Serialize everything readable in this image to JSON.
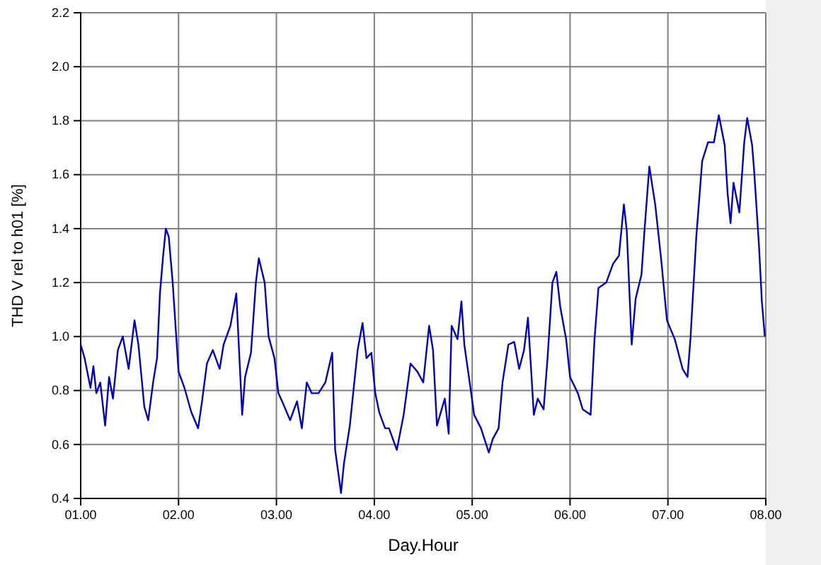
{
  "chart_data": {
    "type": "line",
    "xlabel": "Day.Hour",
    "ylabel": "THD V rel to h01 [%]",
    "grid": true,
    "marker": "none",
    "line_style": "solid",
    "xlim": [
      1,
      8
    ],
    "xticks": [
      {
        "value": 1,
        "label": "01.00"
      },
      {
        "value": 2,
        "label": "02.00"
      },
      {
        "value": 3,
        "label": "03.00"
      },
      {
        "value": 4,
        "label": "04.00"
      },
      {
        "value": 5,
        "label": "05.00"
      },
      {
        "value": 6,
        "label": "06.00"
      },
      {
        "value": 7,
        "label": "07.00"
      },
      {
        "value": 8,
        "label": "08.00"
      }
    ],
    "ylim": [
      0.4,
      2.2
    ],
    "yticks": [
      {
        "value": 0.4,
        "label": "0.4"
      },
      {
        "value": 0.6,
        "label": "0.6"
      },
      {
        "value": 0.8,
        "label": "0.8"
      },
      {
        "value": 1,
        "label": "1.0"
      },
      {
        "value": 1.2,
        "label": "1.2"
      },
      {
        "value": 1.4,
        "label": "1.4"
      },
      {
        "value": 1.6,
        "label": "1.6"
      },
      {
        "value": 1.8,
        "label": "1.8"
      },
      {
        "value": 2,
        "label": "2.0"
      },
      {
        "value": 2.2,
        "label": "2.2"
      }
    ],
    "series": [
      {
        "color": "#0000c0",
        "x": [
          1.0,
          1.04,
          1.1,
          1.13,
          1.16,
          1.2,
          1.25,
          1.29,
          1.33,
          1.38,
          1.43,
          1.49,
          1.55,
          1.59,
          1.65,
          1.69,
          1.74,
          1.78,
          1.81,
          1.84,
          1.87,
          1.9,
          1.94,
          2.0,
          2.06,
          2.13,
          2.2,
          2.24,
          2.29,
          2.35,
          2.42,
          2.46,
          2.53,
          2.59,
          2.65,
          2.68,
          2.74,
          2.79,
          2.82,
          2.88,
          2.92,
          2.98,
          3.02,
          3.07,
          3.14,
          3.21,
          3.26,
          3.31,
          3.36,
          3.43,
          3.5,
          3.57,
          3.6,
          3.66,
          3.69,
          3.75,
          3.79,
          3.83,
          3.88,
          3.92,
          3.97,
          4.01,
          4.05,
          4.11,
          4.15,
          4.23,
          4.3,
          4.37,
          4.44,
          4.5,
          4.56,
          4.6,
          4.64,
          4.72,
          4.76,
          4.79,
          4.85,
          4.89,
          4.92,
          4.99,
          5.02,
          5.09,
          5.17,
          5.21,
          5.27,
          5.31,
          5.37,
          5.43,
          5.48,
          5.53,
          5.57,
          5.63,
          5.67,
          5.73,
          5.77,
          5.82,
          5.86,
          5.9,
          5.96,
          6.0,
          6.08,
          6.13,
          6.21,
          6.25,
          6.29,
          6.37,
          6.44,
          6.5,
          6.55,
          6.58,
          6.63,
          6.67,
          6.73,
          6.76,
          6.81,
          6.87,
          6.93,
          6.99,
          7.07,
          7.15,
          7.2,
          7.23,
          7.29,
          7.35,
          7.41,
          7.47,
          7.52,
          7.58,
          7.61,
          7.64,
          7.67,
          7.73,
          7.78,
          7.81,
          7.86,
          7.88,
          7.93,
          7.96,
          7.99
        ],
        "values": [
          0.97,
          0.92,
          0.81,
          0.89,
          0.79,
          0.83,
          0.67,
          0.85,
          0.77,
          0.95,
          1.0,
          0.88,
          1.06,
          0.97,
          0.74,
          0.69,
          0.83,
          0.92,
          1.16,
          1.29,
          1.4,
          1.37,
          1.2,
          0.87,
          0.81,
          0.72,
          0.66,
          0.76,
          0.9,
          0.95,
          0.88,
          0.97,
          1.04,
          1.16,
          0.71,
          0.85,
          0.94,
          1.2,
          1.29,
          1.2,
          1.0,
          0.92,
          0.79,
          0.75,
          0.69,
          0.76,
          0.66,
          0.83,
          0.79,
          0.79,
          0.83,
          0.94,
          0.58,
          0.42,
          0.53,
          0.67,
          0.81,
          0.95,
          1.05,
          0.92,
          0.94,
          0.79,
          0.72,
          0.66,
          0.66,
          0.58,
          0.71,
          0.9,
          0.87,
          0.83,
          1.04,
          0.95,
          0.67,
          0.77,
          0.64,
          1.04,
          0.99,
          1.13,
          0.97,
          0.79,
          0.71,
          0.66,
          0.57,
          0.62,
          0.66,
          0.83,
          0.97,
          0.98,
          0.88,
          0.95,
          1.07,
          0.71,
          0.77,
          0.73,
          0.92,
          1.2,
          1.24,
          1.11,
          0.99,
          0.85,
          0.79,
          0.73,
          0.71,
          0.99,
          1.18,
          1.2,
          1.27,
          1.3,
          1.49,
          1.39,
          0.97,
          1.14,
          1.23,
          1.39,
          1.63,
          1.49,
          1.29,
          1.06,
          0.99,
          0.88,
          0.85,
          0.99,
          1.37,
          1.65,
          1.72,
          1.72,
          1.82,
          1.71,
          1.53,
          1.42,
          1.57,
          1.46,
          1.72,
          1.81,
          1.71,
          1.62,
          1.34,
          1.13,
          1.0
        ]
      }
    ]
  }
}
